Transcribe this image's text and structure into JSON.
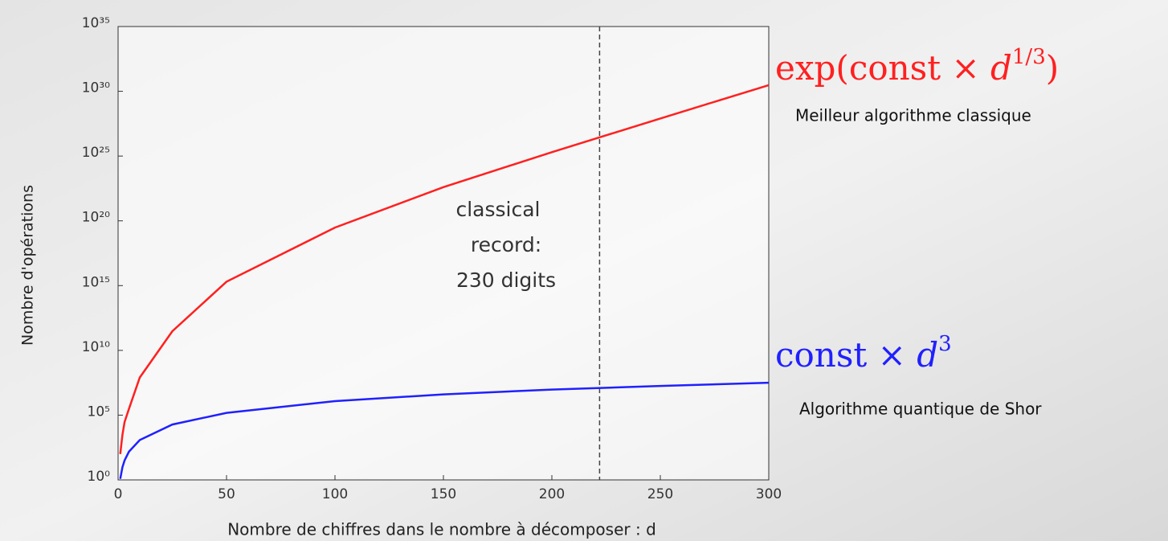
{
  "chart_data": {
    "type": "line",
    "x_label": "Nombre de chiffres dans le nombre à décomposer : d",
    "y_label": "Nombre d'opérations",
    "x": [
      1,
      2,
      3,
      5,
      10,
      25,
      50,
      100,
      150,
      200,
      250,
      300
    ],
    "series": [
      {
        "name": "Meilleur algorithme classique",
        "color": "#ff2020",
        "formula": [
          "exp(const × ",
          "d",
          "1/3",
          ")"
        ],
        "values": [
          100,
          3000,
          30000,
          300000,
          80000000,
          300000000000,
          2000000000000000.0,
          3e+19,
          4e+22,
          2e+25,
          8e+27,
          3e+30
        ]
      },
      {
        "name": "Algorithme quantique de Shor",
        "color": "#2020ff",
        "formula": [
          "const × ",
          "d",
          "3",
          ""
        ],
        "values": [
          1.2,
          9.4,
          32,
          150,
          1200,
          19000,
          150000,
          1200000,
          4000000,
          9400000,
          18000000,
          32000000
        ]
      }
    ],
    "xlim": [
      0,
      300
    ],
    "xticks": [
      0,
      50,
      100,
      150,
      200,
      250,
      300
    ],
    "ylim": [
      1,
      1e+35
    ],
    "log_y": true,
    "yticks": [
      {
        "value": 1,
        "label": "10⁰"
      },
      {
        "value": 100000,
        "label": "10⁵"
      },
      {
        "value": 10000000000.0,
        "label": "10¹⁰"
      },
      {
        "value": 1000000000000000.0,
        "label": "10¹⁵"
      },
      {
        "value": 1e+20,
        "label": "10²⁰"
      },
      {
        "value": 1e+25,
        "label": "10²⁵"
      },
      {
        "value": 1e+30,
        "label": "10³⁰"
      },
      {
        "value": 1e+35,
        "label": "10³⁵"
      }
    ],
    "vline": 222,
    "annotation": [
      "classical",
      "record:",
      "230 digits"
    ]
  }
}
